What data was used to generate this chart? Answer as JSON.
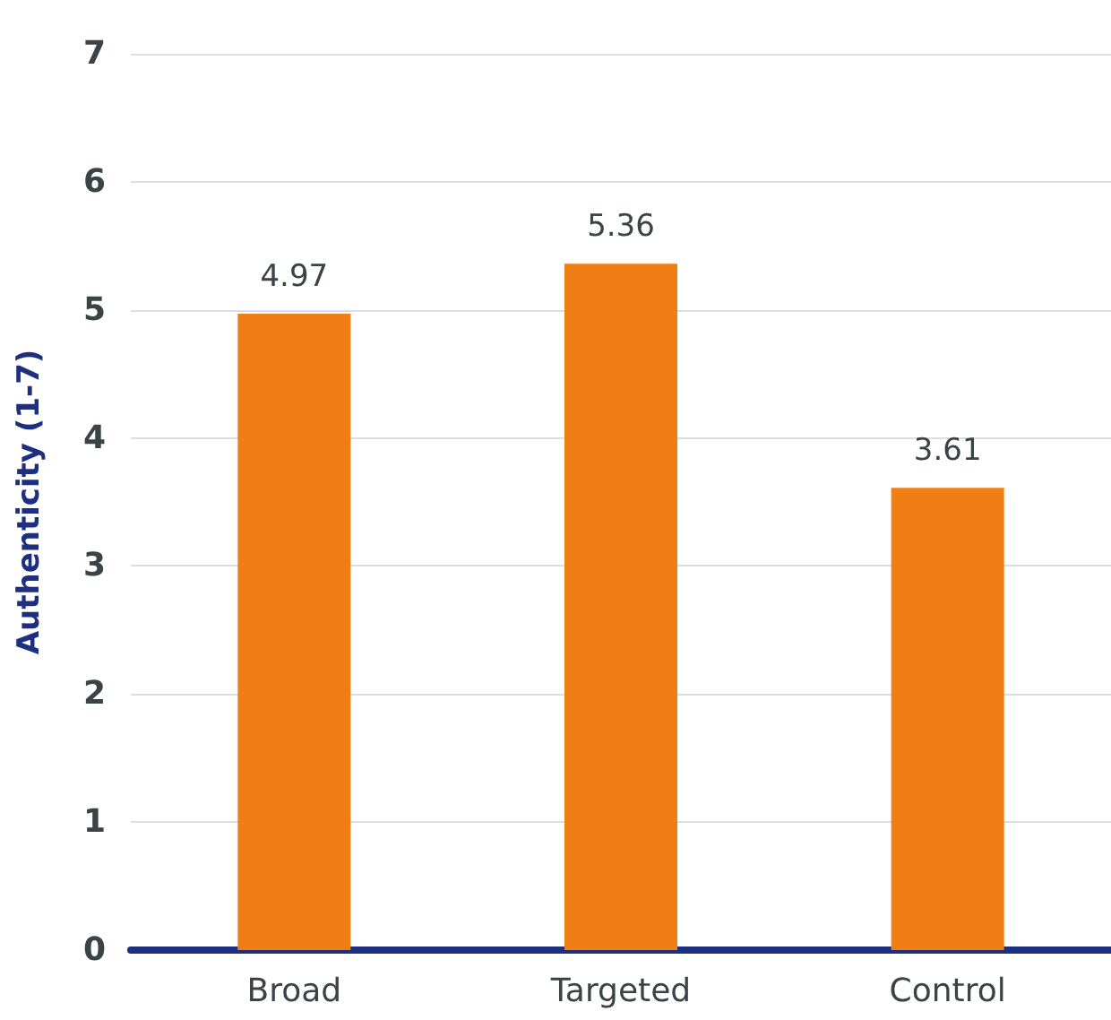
{
  "chart_data": {
    "type": "bar",
    "ylabel": "Authenticity (1-7)",
    "categories": [
      "Broad",
      "Targeted",
      "Control"
    ],
    "values": [
      4.97,
      5.36,
      3.61
    ],
    "color": "#ef7f14",
    "ylim": [
      0,
      7
    ],
    "yticks": [
      0,
      1,
      2,
      3,
      4,
      5,
      6,
      7
    ],
    "grid": "y",
    "data_labels": true
  }
}
